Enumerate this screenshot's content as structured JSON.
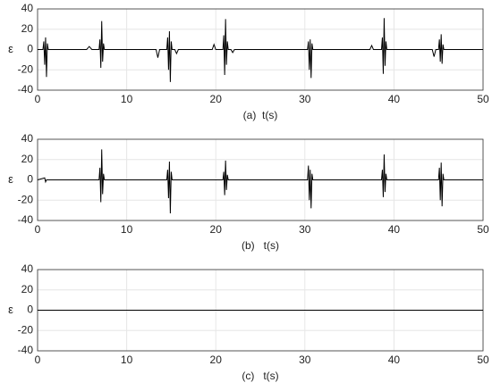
{
  "chart_data": [
    {
      "type": "line",
      "xlabel": "(a)  t(s)",
      "ylabel": "ε",
      "color": "#000000",
      "grid": true,
      "xlim": [
        0,
        50
      ],
      "ylim": [
        -40,
        40
      ],
      "xticks": [
        0,
        10,
        20,
        30,
        40,
        50
      ],
      "yticks": [
        -40,
        -20,
        0,
        20,
        40
      ],
      "x": [
        0,
        0.6,
        0.7,
        0.8,
        0.9,
        1.0,
        1.1,
        1.2,
        5.5,
        5.8,
        6.1,
        6.9,
        7.0,
        7.1,
        7.2,
        7.3,
        7.4,
        7.5,
        13.3,
        13.5,
        13.7,
        14.5,
        14.6,
        14.7,
        14.8,
        14.9,
        15.0,
        15.1,
        15.4,
        15.6,
        15.8,
        19.6,
        19.8,
        20.0,
        20.8,
        20.9,
        21.0,
        21.1,
        21.2,
        21.3,
        21.4,
        21.7,
        21.9,
        22.1,
        30.3,
        30.4,
        30.5,
        30.6,
        30.7,
        30.8,
        30.9,
        37.3,
        37.5,
        37.7,
        38.6,
        38.7,
        38.8,
        38.9,
        39.0,
        39.1,
        39.2,
        44.3,
        44.5,
        44.7,
        45.0,
        45.1,
        45.2,
        45.3,
        45.4,
        45.5,
        45.6,
        50
      ],
      "values": [
        0,
        0,
        8,
        -15,
        12,
        -27,
        6,
        0,
        0,
        3,
        0,
        0,
        10,
        -18,
        28,
        -12,
        6,
        0,
        0,
        -8,
        0,
        0,
        12,
        -20,
        18,
        -32,
        8,
        0,
        0,
        -4,
        0,
        0,
        5,
        0,
        0,
        14,
        -25,
        30,
        -15,
        8,
        0,
        0,
        -3,
        0,
        0,
        8,
        -20,
        10,
        -28,
        6,
        0,
        0,
        4,
        0,
        0,
        12,
        -24,
        31,
        -16,
        8,
        0,
        0,
        -7,
        0,
        0,
        10,
        -12,
        15,
        -14,
        5,
        0,
        0
      ]
    },
    {
      "type": "line",
      "xlabel": "(b)   t(s)",
      "ylabel": "ε",
      "color": "#000000",
      "grid": true,
      "xlim": [
        0,
        50
      ],
      "ylim": [
        -40,
        40
      ],
      "xticks": [
        0,
        10,
        20,
        30,
        40,
        50
      ],
      "yticks": [
        -40,
        -20,
        0,
        20,
        40
      ],
      "x": [
        0,
        0.8,
        0.9,
        1.0,
        6.9,
        7.0,
        7.1,
        7.2,
        7.3,
        7.4,
        7.5,
        14.5,
        14.6,
        14.7,
        14.8,
        14.9,
        15.0,
        15.1,
        20.8,
        20.9,
        21.0,
        21.1,
        21.2,
        21.3,
        21.4,
        30.3,
        30.4,
        30.5,
        30.6,
        30.7,
        30.8,
        30.9,
        38.6,
        38.7,
        38.8,
        38.9,
        39.0,
        39.1,
        39.2,
        45.0,
        45.1,
        45.2,
        45.3,
        45.4,
        45.5,
        45.6,
        50
      ],
      "values": [
        0,
        2,
        -2,
        0,
        0,
        12,
        -22,
        30,
        -14,
        6,
        0,
        0,
        10,
        -18,
        18,
        -33,
        8,
        0,
        0,
        8,
        -15,
        19,
        -10,
        5,
        0,
        0,
        14,
        -20,
        10,
        -28,
        6,
        0,
        0,
        10,
        -17,
        25,
        -12,
        6,
        0,
        0,
        12,
        -20,
        17,
        -26,
        6,
        0,
        0
      ]
    },
    {
      "type": "line",
      "xlabel": "(c)   t(s)",
      "ylabel": "ε",
      "color": "#000000",
      "grid": true,
      "xlim": [
        0,
        50
      ],
      "ylim": [
        -40,
        40
      ],
      "xticks": [
        0,
        10,
        20,
        30,
        40,
        50
      ],
      "yticks": [
        -40,
        -20,
        0,
        20,
        40
      ],
      "x": [
        0,
        50
      ],
      "values": [
        0,
        0
      ]
    }
  ]
}
